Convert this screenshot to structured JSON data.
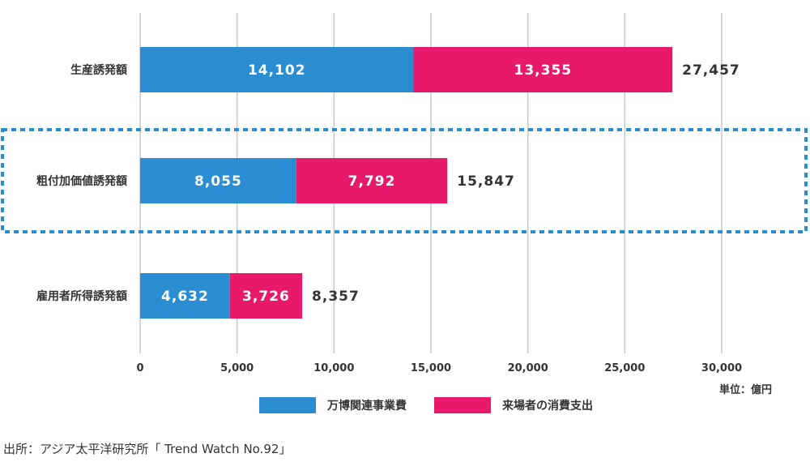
{
  "chart_data": {
    "type": "bar",
    "orientation": "horizontal",
    "stacked": true,
    "categories": [
      "生産誘発額",
      "粗付加価値誘発額",
      "雇用者所得誘発額"
    ],
    "series": [
      {
        "name": "万博関連事業費",
        "color": "#2a8dd2",
        "values": [
          14102,
          8055,
          4632
        ]
      },
      {
        "name": "来場者の消費支出",
        "color": "#e8186a",
        "values": [
          13355,
          7792,
          3726
        ]
      }
    ],
    "totals": [
      27457,
      15847,
      8357
    ],
    "xlim": [
      0,
      30000
    ],
    "xticks": [
      0,
      5000,
      10000,
      15000,
      20000,
      25000,
      30000
    ],
    "grid": true,
    "legend_position": "bottom",
    "highlighted_category": "粗付加価値誘発額",
    "highlight_color": "#2a8dd2"
  },
  "unit_label": "単位：億円",
  "source_text": "出所：アジア太平洋研究所「 Trend Watch No.92」"
}
